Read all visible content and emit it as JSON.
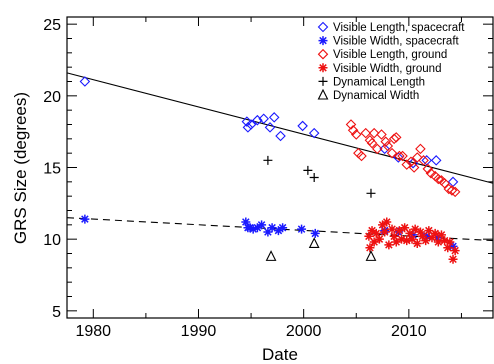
{
  "chart_data": {
    "type": "scatter",
    "title": "",
    "xlabel": "Date",
    "ylabel": "GRS Size (degrees)",
    "xlim": [
      1977.5,
      2018
    ],
    "ylim": [
      4.5,
      25.5
    ],
    "x_ticks": [
      1980,
      1990,
      2000,
      2010
    ],
    "y_ticks": [
      5,
      10,
      15,
      20,
      25
    ],
    "grid": false,
    "legend": "top-right",
    "series": [
      {
        "name": "Visible Length, spacecraft",
        "marker": "diamond",
        "color": "#1a1aff",
        "points": [
          [
            1979.2,
            21.0
          ],
          [
            1994.6,
            18.2
          ],
          [
            1994.7,
            17.8
          ],
          [
            1995.0,
            18.0
          ],
          [
            1995.6,
            18.3
          ],
          [
            1996.2,
            18.4
          ],
          [
            1996.8,
            17.8
          ],
          [
            1997.2,
            18.5
          ],
          [
            1997.8,
            17.2
          ],
          [
            1999.9,
            17.9
          ],
          [
            2001.0,
            17.4
          ],
          [
            2007.7,
            16.3
          ],
          [
            2009.0,
            15.7
          ],
          [
            2010.4,
            15.3
          ],
          [
            2011.7,
            15.5
          ],
          [
            2012.6,
            15.5
          ],
          [
            2014.2,
            14.0
          ]
        ]
      },
      {
        "name": "Visible Width, spacecraft",
        "marker": "asterisk",
        "color": "#1a1aff",
        "points": [
          [
            1979.2,
            11.4
          ],
          [
            1994.5,
            11.2
          ],
          [
            1994.7,
            10.8
          ],
          [
            1994.9,
            10.8
          ],
          [
            1995.2,
            10.7
          ],
          [
            1995.6,
            10.8
          ],
          [
            1996.0,
            11.0
          ],
          [
            1996.6,
            10.5
          ],
          [
            1997.0,
            10.8
          ],
          [
            1997.6,
            10.6
          ],
          [
            1998.0,
            10.8
          ],
          [
            1999.8,
            10.7
          ],
          [
            2001.1,
            10.4
          ],
          [
            2007.7,
            10.6
          ],
          [
            2009.0,
            10.5
          ],
          [
            2010.4,
            10.3
          ],
          [
            2011.7,
            10.2
          ],
          [
            2012.7,
            10.1
          ],
          [
            2014.2,
            9.5
          ]
        ]
      },
      {
        "name": "Visible Length, ground",
        "marker": "diamond",
        "color": "#ee1111",
        "points": [
          [
            2004.5,
            18.0
          ],
          [
            2004.7,
            17.6
          ],
          [
            2005.0,
            17.3
          ],
          [
            2005.2,
            16.0
          ],
          [
            2005.5,
            15.8
          ],
          [
            2005.9,
            17.4
          ],
          [
            2006.3,
            16.9
          ],
          [
            2006.5,
            16.7
          ],
          [
            2006.7,
            17.4
          ],
          [
            2007.0,
            16.3
          ],
          [
            2007.4,
            17.3
          ],
          [
            2007.8,
            16.8
          ],
          [
            2008.0,
            16.5
          ],
          [
            2008.4,
            16.0
          ],
          [
            2008.6,
            17.0
          ],
          [
            2008.8,
            17.1
          ],
          [
            2009.1,
            15.8
          ],
          [
            2009.4,
            15.8
          ],
          [
            2009.8,
            15.2
          ],
          [
            2010.2,
            15.4
          ],
          [
            2010.5,
            15.0
          ],
          [
            2010.8,
            15.7
          ],
          [
            2011.1,
            16.3
          ],
          [
            2011.4,
            15.5
          ],
          [
            2011.8,
            14.9
          ],
          [
            2012.1,
            14.6
          ],
          [
            2012.5,
            14.4
          ],
          [
            2012.8,
            14.2
          ],
          [
            2013.1,
            14.1
          ],
          [
            2013.4,
            13.9
          ],
          [
            2013.8,
            13.5
          ],
          [
            2014.1,
            13.4
          ],
          [
            2014.4,
            13.3
          ]
        ]
      },
      {
        "name": "Visible Width, ground",
        "marker": "asterisk",
        "color": "#ee1111",
        "points": [
          [
            2006.2,
            10.2
          ],
          [
            2006.3,
            9.4
          ],
          [
            2006.5,
            10.6
          ],
          [
            2006.7,
            9.8
          ],
          [
            2006.9,
            10.4
          ],
          [
            2007.2,
            10.0
          ],
          [
            2007.5,
            11.0
          ],
          [
            2007.7,
            10.5
          ],
          [
            2007.9,
            11.2
          ],
          [
            2008.1,
            9.6
          ],
          [
            2008.4,
            10.7
          ],
          [
            2008.6,
            10.2
          ],
          [
            2008.8,
            9.8
          ],
          [
            2009.1,
            10.6
          ],
          [
            2009.3,
            10.0
          ],
          [
            2009.6,
            10.8
          ],
          [
            2009.8,
            9.9
          ],
          [
            2010.1,
            10.4
          ],
          [
            2010.3,
            10.0
          ],
          [
            2010.6,
            10.7
          ],
          [
            2010.8,
            9.7
          ],
          [
            2011.1,
            10.5
          ],
          [
            2011.3,
            10.2
          ],
          [
            2011.6,
            9.9
          ],
          [
            2011.9,
            10.6
          ],
          [
            2012.2,
            10.1
          ],
          [
            2012.5,
            10.4
          ],
          [
            2012.8,
            9.8
          ],
          [
            2013.1,
            10.3
          ],
          [
            2013.4,
            9.9
          ],
          [
            2013.7,
            9.4
          ],
          [
            2013.9,
            9.8
          ],
          [
            2014.2,
            8.6
          ],
          [
            2014.4,
            9.2
          ]
        ]
      },
      {
        "name": "Dynamical Length",
        "marker": "plus",
        "color": "#000000",
        "points": [
          [
            1996.6,
            15.5
          ],
          [
            2000.4,
            14.8
          ],
          [
            2001.0,
            14.3
          ],
          [
            2006.4,
            13.2
          ]
        ]
      },
      {
        "name": "Dynamical Width",
        "marker": "triangle",
        "color": "#000000",
        "points": [
          [
            1996.9,
            8.8
          ],
          [
            2001.0,
            9.7
          ],
          [
            2006.4,
            8.8
          ]
        ]
      }
    ],
    "fit_lines": [
      {
        "style": "solid",
        "x": [
          1977.5,
          2018
        ],
        "y": [
          21.6,
          13.9
        ]
      },
      {
        "style": "dashed",
        "x": [
          1977.5,
          2018
        ],
        "y": [
          11.5,
          9.9
        ]
      }
    ]
  }
}
